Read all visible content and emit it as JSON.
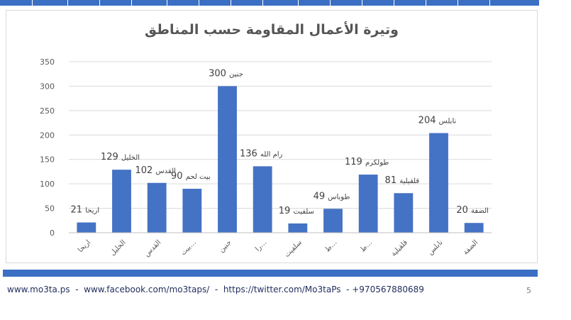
{
  "footer": {
    "text": "www.mo3ta.ps  -  www.facebook.com/mo3taps/  -  https://twitter.com/Mo3taPs  - +970567880689",
    "page_number": "5"
  },
  "colors": {
    "bar": "#4472c4",
    "accent": "#3a6fc4"
  },
  "chart_data": {
    "type": "bar",
    "title": "وتيرة الأعمال المقاومة حسب المناطق",
    "xlabel": "",
    "ylabel": "",
    "ylim": [
      0,
      350
    ],
    "yticks": [
      0,
      50,
      100,
      150,
      200,
      250,
      300,
      350
    ],
    "grid": true,
    "categories": [
      "اريحا",
      "الخليل",
      "القدس",
      "بيت لحم",
      "جنين",
      "رام الله",
      "سلفيت",
      "طوباس",
      "طولكرم",
      "قلقيلية",
      "نابلس",
      "الضفة"
    ],
    "tick_labels": [
      "اريحا",
      "الخليل",
      "القدس",
      "بيت…",
      "جنين",
      "را…",
      "سلفيت",
      "ط…",
      "ط…",
      "قلقيلية",
      "نابلس",
      "الضفة"
    ],
    "values": [
      21,
      129,
      102,
      90,
      300,
      136,
      19,
      49,
      119,
      81,
      204,
      20
    ],
    "data_labels": [
      "اريحا, 21",
      "الخليل, 129",
      "القدس, 102",
      "بيت لحم, 90",
      "جنين, 300",
      "رام الله, 136",
      "سلفيت, 19",
      "طوباس, 49",
      "طولكرم, 119",
      "قلقيلية, 81",
      "نابلس, 204",
      "الضفة, 20"
    ]
  }
}
